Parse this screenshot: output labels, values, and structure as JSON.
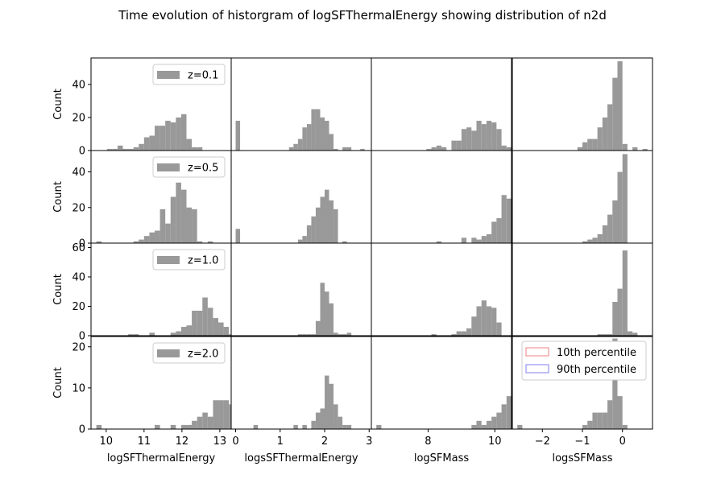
{
  "title": "Time evolution of historgram of logSFThermalEnergy showing distribution of n2d",
  "ylabel": "Count",
  "legend_extra": [
    {
      "label": "10th percentile",
      "color": "#f08080"
    },
    {
      "label": "90th percentile",
      "color": "#8080f0"
    }
  ],
  "colors": {
    "bar": "#999999",
    "axis": "#000000"
  },
  "columns": [
    {
      "xlabel": "logSFThermalEnergy",
      "xlim": [
        9.6,
        13.3
      ],
      "xticks": [
        10,
        11,
        12,
        13
      ],
      "xticklabels": [
        "10",
        "11",
        "12",
        "13"
      ]
    },
    {
      "xlabel": "logsSFThermalEnergy",
      "xlim": [
        -0.1,
        3.05
      ],
      "xticks": [
        0,
        1,
        2,
        3
      ],
      "xticklabels": [
        "0",
        "1",
        "2",
        "3"
      ]
    },
    {
      "xlabel": "logSFMass",
      "xlim": [
        6.3,
        10.5
      ],
      "xticks": [
        8,
        10
      ],
      "xticklabels": [
        "8",
        "10"
      ]
    },
    {
      "xlabel": "logsSFMass",
      "xlim": [
        -2.75,
        0.75
      ],
      "xticks": [
        -2,
        -1,
        0
      ],
      "xticklabels": [
        "−2",
        "−1",
        "0"
      ]
    }
  ],
  "rows": [
    {
      "label": "z=0.1",
      "ylim": [
        0,
        56
      ],
      "yticks": [
        0,
        20,
        40
      ],
      "yticklabels": [
        "0",
        "20",
        "40"
      ]
    },
    {
      "label": "z=0.5",
      "ylim": [
        0,
        52
      ],
      "yticks": [
        0,
        20,
        40
      ],
      "yticklabels": [
        "0",
        "20",
        "40"
      ]
    },
    {
      "label": "z=1.0",
      "ylim": [
        0,
        63
      ],
      "yticks": [
        0,
        20,
        40,
        60
      ],
      "yticklabels": [
        "0",
        "20",
        "40",
        "60"
      ]
    },
    {
      "label": "z=2.0",
      "ylim": [
        0,
        22.5
      ],
      "yticks": [
        0,
        10,
        20
      ],
      "yticklabels": [
        "0",
        "10",
        "20"
      ]
    }
  ],
  "chart_data": {
    "type": "bar",
    "layout": "4x4 grid of histograms, rows share y, columns share x",
    "panels": [
      {
        "row": 0,
        "col": 0,
        "bin_start": 9.6,
        "bin_width": 0.14,
        "counts": [
          0,
          0,
          0,
          1,
          1,
          3,
          1,
          1,
          2,
          4,
          8,
          9,
          15,
          15,
          18,
          17,
          20,
          22,
          7,
          2,
          2,
          0,
          0,
          0,
          0,
          0
        ]
      },
      {
        "row": 0,
        "col": 1,
        "bin_start": -0.1,
        "bin_width": 0.1,
        "counts": [
          0,
          18,
          0,
          0,
          0,
          0,
          0,
          0,
          0,
          0,
          0,
          0,
          0,
          2,
          4,
          7,
          14,
          16,
          25,
          25,
          20,
          18,
          10,
          1,
          0,
          2,
          2,
          0,
          0,
          1,
          0
        ]
      },
      {
        "row": 0,
        "col": 2,
        "bin_start": 6.3,
        "bin_width": 0.15,
        "counts": [
          0,
          0,
          0,
          0,
          0,
          0,
          0,
          0,
          0,
          0,
          0,
          1,
          2,
          3,
          2,
          0,
          6,
          6,
          13,
          14,
          12,
          18,
          16,
          18,
          17,
          13,
          3,
          2
        ]
      },
      {
        "row": 0,
        "col": 3,
        "bin_start": -2.75,
        "bin_width": 0.125,
        "counts": [
          0,
          0,
          0,
          0,
          0,
          0,
          0,
          0,
          0,
          0,
          0,
          0,
          0,
          2,
          5,
          7,
          7,
          14,
          20,
          28,
          44,
          54,
          4,
          0,
          2,
          0,
          1,
          0
        ]
      },
      {
        "row": 1,
        "col": 0,
        "bin_start": 9.6,
        "bin_width": 0.14,
        "counts": [
          0,
          1,
          0,
          0,
          0,
          0,
          0,
          0,
          1,
          2,
          4,
          6,
          7,
          19,
          11,
          26,
          34,
          30,
          20,
          19,
          1,
          0,
          1,
          0,
          0,
          0
        ]
      },
      {
        "row": 1,
        "col": 1,
        "bin_start": -0.1,
        "bin_width": 0.1,
        "counts": [
          0,
          8,
          0,
          0,
          0,
          0,
          0,
          0,
          0,
          0,
          0,
          0,
          0,
          0,
          0,
          2,
          4,
          10,
          15,
          20,
          26,
          30,
          24,
          19,
          0,
          1,
          0,
          0,
          0,
          0,
          0
        ]
      },
      {
        "row": 1,
        "col": 2,
        "bin_start": 6.3,
        "bin_width": 0.15,
        "counts": [
          0,
          0,
          0,
          0,
          0,
          0,
          0,
          0,
          0,
          0,
          0,
          0,
          0,
          1,
          0,
          0,
          0,
          0,
          3,
          0,
          3,
          2,
          4,
          5,
          12,
          14,
          27,
          25,
          20,
          13
        ]
      },
      {
        "row": 1,
        "col": 3,
        "bin_start": -2.75,
        "bin_width": 0.125,
        "counts": [
          0,
          0,
          0,
          0,
          0,
          0,
          0,
          0,
          0,
          0,
          0,
          0,
          0,
          0,
          1,
          2,
          3,
          5,
          10,
          16,
          24,
          40,
          50,
          0,
          0,
          0,
          0,
          0
        ]
      },
      {
        "row": 2,
        "col": 0,
        "bin_start": 9.6,
        "bin_width": 0.14,
        "counts": [
          0,
          0,
          0,
          0,
          0,
          0,
          0,
          1,
          1,
          0,
          0,
          2,
          0,
          0,
          0,
          2,
          3,
          6,
          7,
          17,
          17,
          26,
          19,
          12,
          9,
          6,
          1
        ]
      },
      {
        "row": 2,
        "col": 1,
        "bin_start": -0.1,
        "bin_width": 0.1,
        "counts": [
          0,
          0,
          0,
          0,
          0,
          0,
          0,
          0,
          0,
          0,
          0,
          0,
          0,
          0,
          0,
          1,
          1,
          1,
          1,
          10,
          36,
          30,
          22,
          2,
          1,
          1,
          2,
          0,
          0,
          0,
          0
        ]
      },
      {
        "row": 2,
        "col": 2,
        "bin_start": 6.3,
        "bin_width": 0.15,
        "counts": [
          0,
          0,
          0,
          0,
          0,
          0,
          0,
          0,
          0,
          0,
          0,
          0,
          1,
          0,
          0,
          0,
          1,
          3,
          3,
          5,
          13,
          20,
          24,
          20,
          19,
          9
        ]
      },
      {
        "row": 2,
        "col": 3,
        "bin_start": -2.75,
        "bin_width": 0.125,
        "counts": [
          0,
          0,
          0,
          0,
          0,
          0,
          0,
          0,
          0,
          0,
          0,
          0,
          0,
          0,
          0,
          0,
          0,
          1,
          1,
          1,
          23,
          32,
          58,
          3,
          2,
          0,
          0,
          0
        ]
      },
      {
        "row": 3,
        "col": 0,
        "bin_start": 9.6,
        "bin_width": 0.14,
        "counts": [
          0,
          1,
          0,
          0,
          0,
          0,
          0,
          0,
          0,
          0,
          0,
          0,
          1,
          0,
          0,
          1,
          0,
          1,
          1,
          2,
          3,
          4,
          3,
          7,
          7,
          7,
          6,
          1,
          1,
          1
        ]
      },
      {
        "row": 3,
        "col": 1,
        "bin_start": -0.1,
        "bin_width": 0.1,
        "counts": [
          0,
          0,
          0,
          0,
          0,
          1,
          0,
          0,
          0,
          0,
          0,
          0,
          0,
          0,
          1,
          0,
          1,
          0,
          2,
          4,
          5,
          13,
          11,
          6,
          3,
          1,
          1,
          0,
          0,
          0,
          0
        ]
      },
      {
        "row": 3,
        "col": 2,
        "bin_start": 6.3,
        "bin_width": 0.15,
        "counts": [
          0,
          1,
          0,
          0,
          0,
          0,
          0,
          0,
          0,
          0,
          0,
          0,
          0,
          0,
          0,
          0,
          0,
          0,
          0,
          0,
          1,
          2,
          1,
          2,
          3,
          4,
          6,
          8,
          10,
          7
        ]
      },
      {
        "row": 3,
        "col": 3,
        "bin_start": -2.75,
        "bin_width": 0.125,
        "counts": [
          0,
          1,
          0,
          0,
          0,
          0,
          0,
          0,
          0,
          0,
          0,
          0,
          0,
          0,
          1,
          2,
          4,
          4,
          4,
          7,
          22,
          8,
          1,
          0,
          0,
          0,
          0,
          0
        ]
      }
    ]
  }
}
